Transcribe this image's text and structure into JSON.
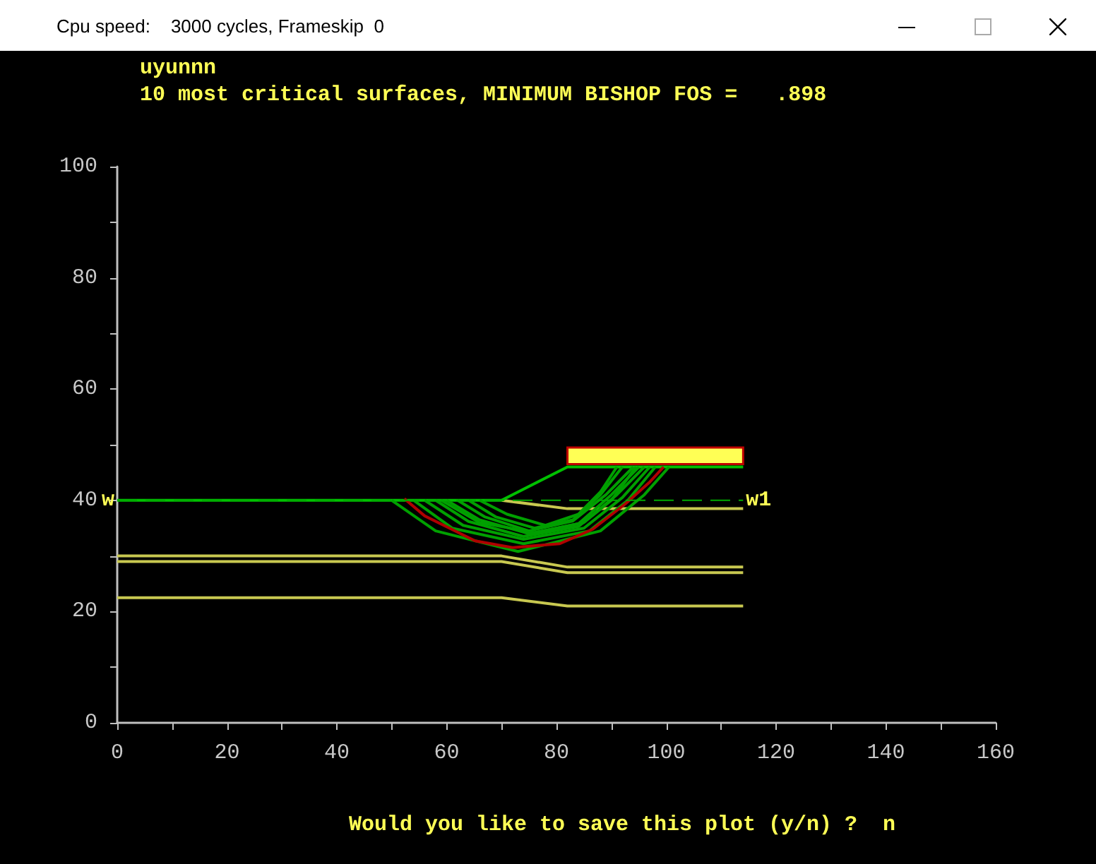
{
  "chart_data": {
    "type": "line",
    "title": "uyunnn",
    "subtitle": "10 most critical surfaces, MINIMUM BISHOP FOS =   .898",
    "annotations": [
      "Would you like to save this plot (y/n) ?  n",
      "Cpu speed:    3000 cycles, Frameskip  0",
      {
        "text": "w",
        "x": 0,
        "y": 40
      },
      {
        "text": "w1",
        "x": 114,
        "y": 40
      }
    ],
    "xlim": [
      0,
      160
    ],
    "xticks": [
      0,
      {
        "value": 10,
        "label": null
      },
      20,
      {
        "value": 30,
        "label": null
      },
      40,
      {
        "value": 50,
        "label": null
      },
      60,
      {
        "value": 70,
        "label": null
      },
      80,
      {
        "value": 90,
        "label": null
      },
      100,
      {
        "value": 110,
        "label": null
      },
      120,
      {
        "value": 130,
        "label": null
      },
      140,
      {
        "value": 150,
        "label": null
      },
      160
    ],
    "ylim": [
      0,
      100
    ],
    "yticks": [
      0,
      {
        "value": 10,
        "label": null
      },
      20,
      {
        "value": 30,
        "label": null
      },
      40,
      {
        "value": 50,
        "label": null
      },
      60,
      {
        "value": 70,
        "label": null
      },
      80,
      {
        "value": 90,
        "label": null
      },
      100
    ],
    "grid": false,
    "marker": "none",
    "series": [
      {
        "type": "area",
        "color": "#ffff55",
        "x": [
          82,
          114,
          114,
          82,
          82
        ],
        "values": [
          49.5,
          49.5,
          46.5,
          46.5,
          49.5
        ]
      },
      {
        "color": "#c8c850",
        "x": [
          70,
          82,
          114
        ],
        "values": [
          40,
          38.5,
          38.5
        ]
      },
      {
        "color": "#c8c850",
        "x": [
          0,
          70,
          82,
          114
        ],
        "values": [
          30,
          30,
          28,
          28
        ]
      },
      {
        "color": "#c8c850",
        "x": [
          0,
          70,
          82,
          114
        ],
        "values": [
          29,
          29,
          27,
          27
        ]
      },
      {
        "color": "#c8c850",
        "x": [
          0,
          70,
          82,
          114
        ],
        "values": [
          22.5,
          22.5,
          21,
          21
        ]
      },
      {
        "color": "#00aa00",
        "line_style": "dashed",
        "x": [
          0,
          114
        ],
        "values": [
          40,
          40
        ]
      },
      {
        "color": "#00c000",
        "x": [
          0,
          70,
          82,
          114
        ],
        "values": [
          40,
          40,
          46,
          46
        ]
      },
      {
        "color": "#00a000",
        "x": [
          50,
          58,
          73,
          88,
          96,
          100.5
        ],
        "values": [
          40,
          34.5,
          30.8,
          34.5,
          41,
          46
        ]
      },
      {
        "color": "#00a000",
        "x": [
          54,
          61,
          74,
          86,
          93,
          98
        ],
        "values": [
          40,
          35,
          32.2,
          34.5,
          40,
          46
        ]
      },
      {
        "color": "#00a000",
        "x": [
          56,
          63,
          74,
          85,
          92,
          97
        ],
        "values": [
          40,
          35.5,
          33,
          35,
          40.5,
          46
        ]
      },
      {
        "color": "#00a000",
        "x": [
          58,
          64,
          74,
          84,
          91,
          96
        ],
        "values": [
          40,
          36.2,
          33.5,
          35.3,
          41,
          46
        ]
      },
      {
        "color": "#00a000",
        "x": [
          59,
          66,
          76,
          85,
          90,
          94.5
        ],
        "values": [
          40,
          36,
          34.2,
          36,
          40,
          46
        ]
      },
      {
        "color": "#00a000",
        "x": [
          60,
          66,
          75,
          84,
          90,
          95
        ],
        "values": [
          40,
          36.5,
          34,
          35.8,
          41,
          46
        ]
      },
      {
        "color": "#00a000",
        "x": [
          62,
          67,
          75,
          83,
          89,
          94
        ],
        "values": [
          40,
          37,
          34.5,
          36.3,
          41,
          46
        ]
      },
      {
        "color": "#00a000",
        "x": [
          64,
          69,
          76,
          83,
          88,
          92
        ],
        "values": [
          40,
          37,
          35,
          36.5,
          41,
          46
        ]
      },
      {
        "color": "#00a000",
        "x": [
          66,
          71,
          78,
          84,
          88,
          91
        ],
        "values": [
          40,
          37.5,
          35.5,
          37.5,
          41.5,
          46
        ]
      },
      {
        "color": "#b00000",
        "x": [
          52.3,
          56,
          60.9,
          65.2,
          72,
          80.6,
          86.6,
          92.6,
          96.9,
          99.5
        ],
        "values": [
          40.3,
          37.2,
          34.8,
          32.7,
          31.5,
          32.2,
          34.8,
          39.4,
          43.2,
          46
        ]
      }
    ]
  }
}
